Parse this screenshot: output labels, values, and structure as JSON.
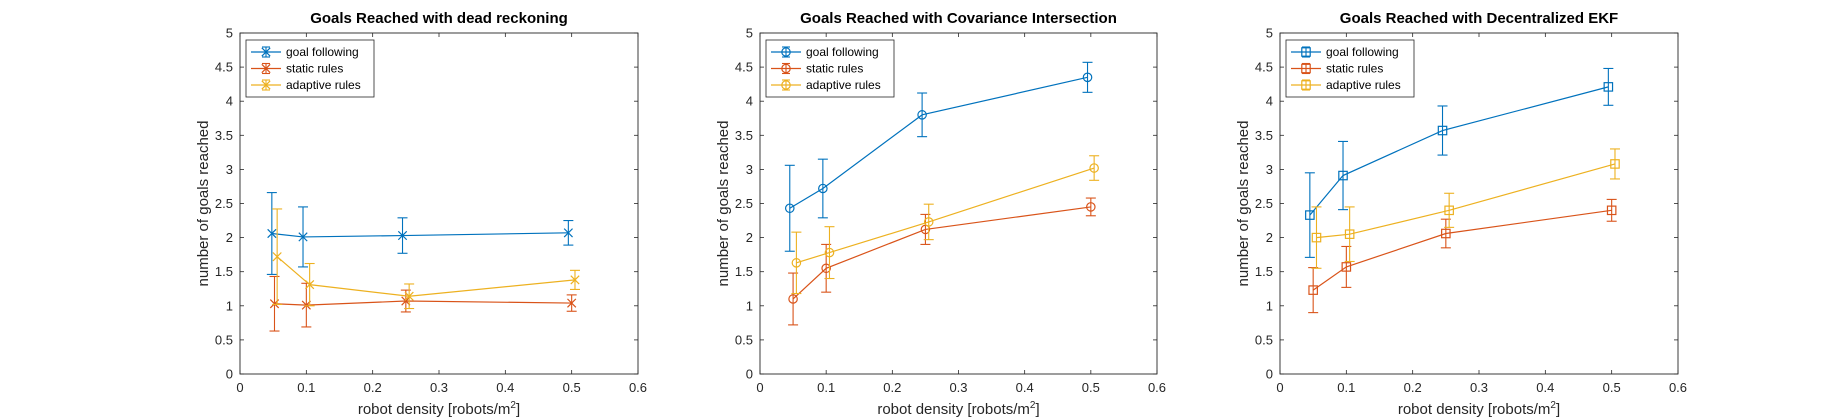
{
  "chart_data": [
    {
      "type": "line",
      "title": "Goals Reached with dead reckoning",
      "xlabel_main": "robot density [robots/m",
      "xlabel_sup": "2",
      "xlabel_end": "]",
      "ylabel": "number of goals reached",
      "xlim": [
        0,
        0.6
      ],
      "ylim": [
        0,
        5
      ],
      "xticks": [
        0,
        0.1,
        0.2,
        0.3,
        0.4,
        0.5,
        0.6
      ],
      "xtick_labels": [
        "0",
        "0.1",
        "0.2",
        "0.3",
        "0.4",
        "0.5",
        "0.6"
      ],
      "yticks": [
        0,
        0.5,
        1,
        1.5,
        2,
        2.5,
        3,
        3.5,
        4,
        4.5,
        5
      ],
      "ytick_labels": [
        "0",
        "0.5",
        "1",
        "1.5",
        "2",
        "2.5",
        "3",
        "3.5",
        "4",
        "4.5",
        "5"
      ],
      "grid": false,
      "legend": "top-left",
      "marker": "x",
      "series": [
        {
          "name": "goal following",
          "color": "#0072BD",
          "x": [
            0.048,
            0.095,
            0.245,
            0.495
          ],
          "y": [
            2.06,
            2.01,
            2.03,
            2.07
          ],
          "err": [
            0.6,
            0.44,
            0.26,
            0.18
          ]
        },
        {
          "name": "static rules",
          "color": "#D95319",
          "x": [
            0.052,
            0.1,
            0.25,
            0.5
          ],
          "y": [
            1.03,
            1.01,
            1.07,
            1.04
          ],
          "err": [
            0.4,
            0.32,
            0.16,
            0.12
          ]
        },
        {
          "name": "adaptive rules",
          "color": "#EDB120",
          "x": [
            0.056,
            0.105,
            0.255,
            0.505
          ],
          "y": [
            1.72,
            1.31,
            1.14,
            1.38
          ],
          "err": [
            0.7,
            0.31,
            0.18,
            0.14
          ]
        }
      ]
    },
    {
      "type": "line",
      "title": "Goals Reached with Covariance Intersection",
      "xlabel_main": "robot density [robots/m",
      "xlabel_sup": "2",
      "xlabel_end": "]",
      "ylabel": "number of goals reached",
      "xlim": [
        0,
        0.6
      ],
      "ylim": [
        0,
        5
      ],
      "xticks": [
        0,
        0.1,
        0.2,
        0.3,
        0.4,
        0.5,
        0.6
      ],
      "xtick_labels": [
        "0",
        "0.1",
        "0.2",
        "0.3",
        "0.4",
        "0.5",
        "0.6"
      ],
      "yticks": [
        0,
        0.5,
        1,
        1.5,
        2,
        2.5,
        3,
        3.5,
        4,
        4.5,
        5
      ],
      "ytick_labels": [
        "0",
        "0.5",
        "1",
        "1.5",
        "2",
        "2.5",
        "3",
        "3.5",
        "4",
        "4.5",
        "5"
      ],
      "grid": false,
      "legend": "top-left",
      "marker": "o",
      "series": [
        {
          "name": "goal following",
          "color": "#0072BD",
          "x": [
            0.045,
            0.095,
            0.245,
            0.495
          ],
          "y": [
            2.43,
            2.72,
            3.8,
            4.35
          ],
          "err": [
            0.63,
            0.43,
            0.32,
            0.22
          ]
        },
        {
          "name": "static rules",
          "color": "#D95319",
          "x": [
            0.05,
            0.1,
            0.25,
            0.5
          ],
          "y": [
            1.1,
            1.55,
            2.12,
            2.45
          ],
          "err": [
            0.38,
            0.35,
            0.22,
            0.13
          ]
        },
        {
          "name": "adaptive rules",
          "color": "#EDB120",
          "x": [
            0.055,
            0.105,
            0.255,
            0.505
          ],
          "y": [
            1.63,
            1.78,
            2.23,
            3.02
          ],
          "err": [
            0.45,
            0.38,
            0.26,
            0.18
          ]
        }
      ]
    },
    {
      "type": "line",
      "title": "Goals Reached with Decentralized EKF",
      "xlabel_main": "robot density [robots/m",
      "xlabel_sup": "2",
      "xlabel_end": "]",
      "ylabel": "number of goals reached",
      "xlim": [
        0,
        0.6
      ],
      "ylim": [
        0,
        5
      ],
      "xticks": [
        0,
        0.1,
        0.2,
        0.3,
        0.4,
        0.5,
        0.6
      ],
      "xtick_labels": [
        "0",
        "0.1",
        "0.2",
        "0.3",
        "0.4",
        "0.5",
        "0.6"
      ],
      "yticks": [
        0,
        0.5,
        1,
        1.5,
        2,
        2.5,
        3,
        3.5,
        4,
        4.5,
        5
      ],
      "ytick_labels": [
        "0",
        "0.5",
        "1",
        "1.5",
        "2",
        "2.5",
        "3",
        "3.5",
        "4",
        "4.5",
        "5"
      ],
      "grid": false,
      "legend": "top-left",
      "marker": "s",
      "series": [
        {
          "name": "goal following",
          "color": "#0072BD",
          "x": [
            0.045,
            0.095,
            0.245,
            0.495
          ],
          "y": [
            2.33,
            2.91,
            3.57,
            4.21
          ],
          "err": [
            0.62,
            0.5,
            0.36,
            0.27
          ]
        },
        {
          "name": "static rules",
          "color": "#D95319",
          "x": [
            0.05,
            0.1,
            0.25,
            0.5
          ],
          "y": [
            1.23,
            1.57,
            2.06,
            2.4
          ],
          "err": [
            0.33,
            0.3,
            0.21,
            0.16
          ]
        },
        {
          "name": "adaptive rules",
          "color": "#EDB120",
          "x": [
            0.055,
            0.105,
            0.255,
            0.505
          ],
          "y": [
            2.0,
            2.05,
            2.4,
            3.08
          ],
          "err": [
            0.45,
            0.4,
            0.25,
            0.22
          ]
        }
      ]
    }
  ]
}
